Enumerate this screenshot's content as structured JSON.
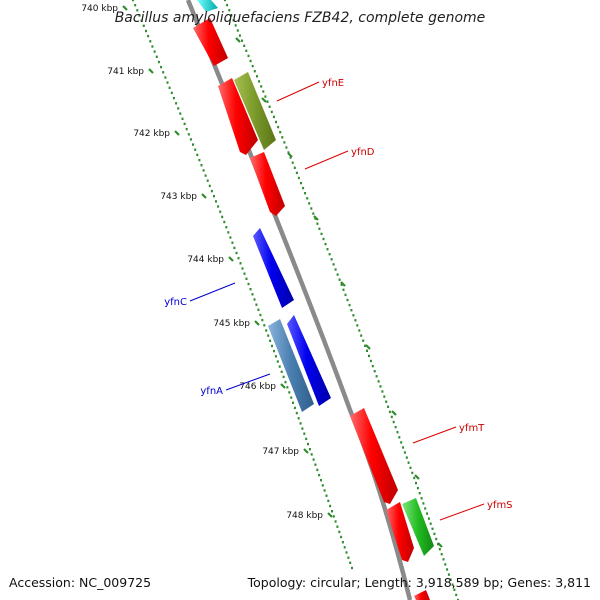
{
  "title": "Bacillus amyloliquefaciens FZB42, complete genome",
  "footer": {
    "accession": "Accession: NC_009725",
    "summary": "Topology: circular; Length: 3,918,589 bp; Genes: 3,811"
  },
  "ruler": {
    "labels": [
      "740 kbp",
      "741 kbp",
      "742 kbp",
      "743 kbp",
      "744 kbp",
      "745 kbp",
      "746 kbp",
      "747 kbp",
      "748 kbp"
    ],
    "tick_color": "#2e8b2e"
  },
  "gene_labels": [
    {
      "name": "yfnE",
      "strand": "forward",
      "color": "#cc0000"
    },
    {
      "name": "yfnD",
      "strand": "forward",
      "color": "#cc0000"
    },
    {
      "name": "yfnC",
      "strand": "reverse",
      "color": "#0000cc"
    },
    {
      "name": "yfnA",
      "strand": "reverse",
      "color": "#0000cc"
    },
    {
      "name": "yfmT",
      "strand": "forward",
      "color": "#cc0000"
    },
    {
      "name": "yfmS",
      "strand": "forward",
      "color": "#cc0000"
    }
  ],
  "colors": {
    "backbone": "#888888",
    "forward_cds": "#ff0000",
    "reverse_cds": "#0000ee",
    "olive_cds": "#7a9a2a",
    "steel_cds": "#4a7fb0",
    "green_cds": "#22bb22",
    "cyan_cds": "#00cccc"
  }
}
